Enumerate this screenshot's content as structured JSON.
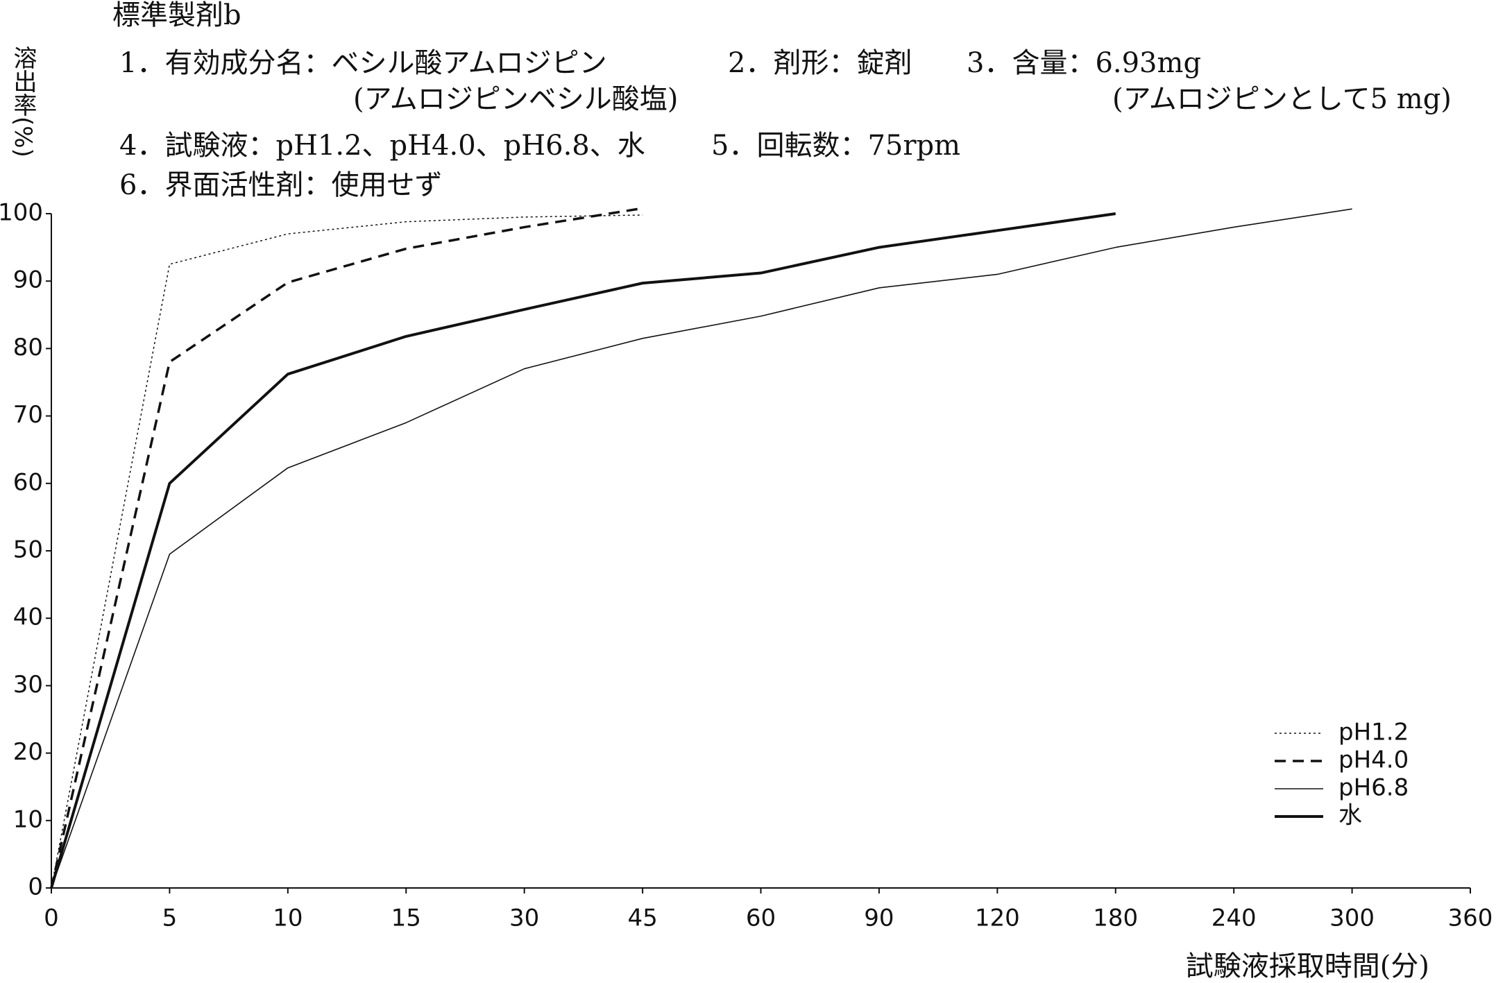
{
  "chart_data": {
    "type": "line",
    "title": "標準製剤b",
    "annotations": [
      "1．有効成分名：ベシル酸アムロジピン",
      "(アムロジピンベシル酸塩)",
      "2．剤形：錠剤",
      "3．含量：6.93mg",
      "(アムロジピンとして5 mg)",
      "4．試験液：pH1.2、pH4.0、pH6.8、水",
      "5．回転数：75rpm",
      "6．界面活性剤：使用せず"
    ],
    "y_label": "溶出率(%)",
    "x_label": "試験液採取時間(分)",
    "categories": [
      "0",
      "5",
      "10",
      "15",
      "30",
      "45",
      "60",
      "90",
      "120",
      "180",
      "240",
      "300",
      "360"
    ],
    "ylim": [
      0,
      100
    ],
    "yticks": [
      0,
      10,
      20,
      30,
      40,
      50,
      60,
      70,
      80,
      90,
      100
    ],
    "legend": "lower-right",
    "series": [
      {
        "name": "pH1.2",
        "color": "#111111",
        "line_style": "dotted",
        "values": [
          0,
          92.5,
          97,
          98.8,
          99.5,
          99.8,
          null,
          null,
          null,
          null,
          null,
          null,
          null
        ]
      },
      {
        "name": "pH4.0",
        "color": "#111111",
        "line_style": "dashed",
        "values": [
          0,
          78,
          89.8,
          94.8,
          98,
          100.8,
          null,
          null,
          null,
          null,
          null,
          null,
          null
        ]
      },
      {
        "name": "pH6.8",
        "color": "#111111",
        "line_style": "thin",
        "values": [
          0,
          49.5,
          62.3,
          69,
          77,
          81.5,
          84.8,
          89,
          91,
          95,
          98,
          100.7,
          null
        ]
      },
      {
        "name": "水",
        "color": "#111111",
        "line_style": "thick",
        "values": [
          0,
          60,
          76.2,
          81.8,
          85.8,
          89.7,
          91.2,
          95,
          97.5,
          100,
          null,
          null,
          null
        ]
      }
    ]
  }
}
